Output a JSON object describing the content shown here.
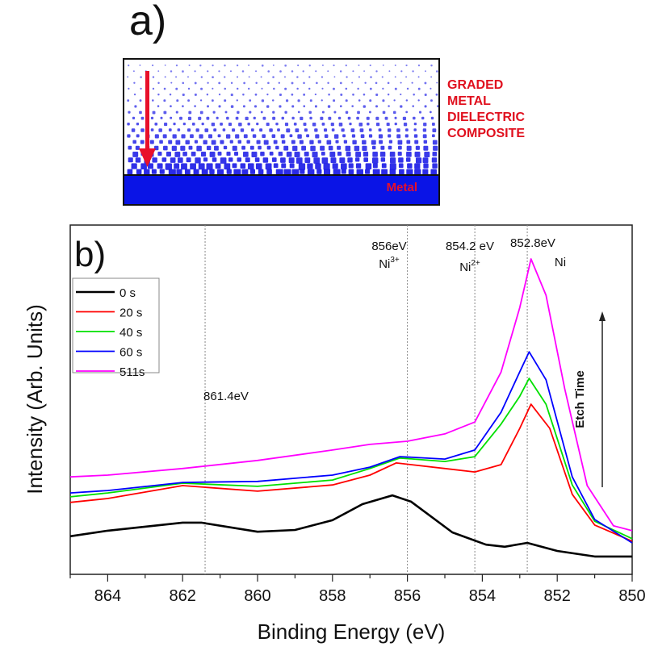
{
  "panel_a": {
    "label": "a)",
    "composite_label_lines": [
      "GRADED",
      "METAL",
      "DIELECTRIC",
      "COMPOSITE"
    ],
    "metal_label": "Metal",
    "arrow_color": "#e8102a",
    "particle_color": "#1a1ae6",
    "metal_color": "#0a14e6",
    "label_color": "#e0101e"
  },
  "chart_data": {
    "type": "line",
    "panel_label": "b)",
    "title": "",
    "xlabel": "Binding Energy (eV)",
    "ylabel": "Intensity (Arb. Units)",
    "xlim": [
      865,
      850
    ],
    "ylim": [
      0,
      100
    ],
    "x_reversed": true,
    "xticks": [
      864,
      862,
      860,
      858,
      856,
      854,
      852,
      850
    ],
    "xtick_labels": [
      "864",
      "862",
      "860",
      "858",
      "856",
      "854",
      "852",
      "850"
    ],
    "yticks": [],
    "grid": false,
    "legend_position": "top-left",
    "reference_lines": [
      {
        "x": 861.4,
        "label": "861.4eV",
        "sublabel": ""
      },
      {
        "x": 856.0,
        "label": "856eV",
        "sublabel": "Ni",
        "superscript": "3+"
      },
      {
        "x": 854.2,
        "label": "854.2 eV",
        "sublabel": "Ni",
        "superscript": "2+"
      },
      {
        "x": 852.8,
        "label": "852.8eV",
        "sublabel": "Ni",
        "superscript": ""
      }
    ],
    "arrow_annotation": {
      "label": "Etch Time",
      "direction": "up"
    },
    "series": [
      {
        "name": "0 s",
        "color": "#000000",
        "x": [
          865,
          864,
          862,
          861.5,
          860,
          859,
          858,
          857.2,
          856.4,
          855.9,
          854.8,
          853.9,
          853.4,
          852.8,
          852,
          851,
          850
        ],
        "y": [
          10.9,
          12.5,
          14.8,
          14.8,
          12.2,
          12.7,
          15.5,
          20.1,
          22.6,
          20.8,
          12.0,
          8.5,
          7.9,
          9.0,
          6.7,
          5.1,
          5.1
        ]
      },
      {
        "name": "20 s",
        "color": "#ff0000",
        "x": [
          865,
          864,
          862,
          860,
          858,
          857,
          856.3,
          855,
          854.2,
          853.5,
          853,
          852.7,
          852.2,
          851.6,
          851,
          850
        ],
        "y": [
          20.6,
          21.7,
          25.4,
          23.8,
          25.6,
          28.4,
          31.9,
          30.3,
          29.3,
          31.4,
          41.8,
          48.7,
          41.8,
          22.9,
          14.1,
          9.5
        ]
      },
      {
        "name": "40 s",
        "color": "#00e000",
        "x": [
          865,
          864,
          862,
          860,
          858,
          857,
          856.2,
          855,
          854.2,
          853.5,
          853,
          852.75,
          852.3,
          851.6,
          851,
          850
        ],
        "y": [
          22.2,
          23.3,
          26.1,
          25.2,
          27.0,
          30.3,
          33.3,
          32.3,
          33.7,
          43.0,
          51.0,
          56.1,
          48.7,
          25.6,
          15.2,
          10.2
        ]
      },
      {
        "name": "60 s",
        "color": "#0000ff",
        "x": [
          865,
          864,
          862,
          860,
          858,
          857,
          856.2,
          855,
          854.2,
          853.5,
          853,
          852.75,
          852.3,
          851.6,
          851,
          850
        ],
        "y": [
          23.3,
          24.0,
          26.3,
          26.6,
          28.4,
          30.7,
          33.7,
          33.0,
          35.6,
          46.4,
          58.0,
          63.7,
          55.7,
          27.9,
          15.7,
          9.0
        ]
      },
      {
        "name": "511s",
        "color": "#ff00ff",
        "x": [
          865,
          864,
          862,
          860,
          858,
          857,
          856,
          855,
          854.2,
          853.5,
          853,
          852.7,
          852.3,
          851.8,
          851.2,
          850.5,
          850
        ],
        "y": [
          27.9,
          28.4,
          30.3,
          32.6,
          35.6,
          37.2,
          38.1,
          40.2,
          43.6,
          57.9,
          76.4,
          90.3,
          79.9,
          53.1,
          25.4,
          13.9,
          12.5
        ]
      }
    ]
  }
}
